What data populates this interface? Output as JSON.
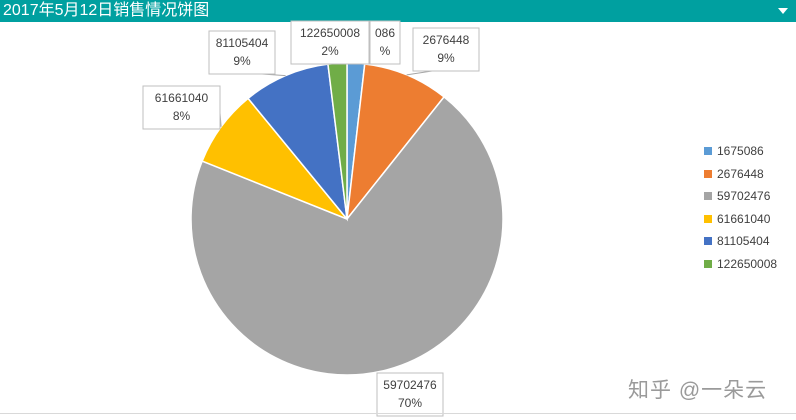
{
  "header": {
    "title": "2017年5月12日销售情况饼图"
  },
  "chart_data": {
    "type": "pie",
    "title": "2017年5月12日销售情况饼图",
    "start_angle_deg": 0,
    "direction": "clockwise",
    "slices": [
      {
        "label": "1675086",
        "value": 1675086,
        "percent_label": "2%",
        "color": "#5b9bd5"
      },
      {
        "label": "2676448",
        "value": 8200000,
        "percent_label": "9%",
        "color": "#ed7d31"
      },
      {
        "label": "59702476",
        "value": 65000000,
        "percent_label": "70%",
        "color": "#a5a5a5"
      },
      {
        "label": "61661040",
        "value": 7400000,
        "percent_label": "8%",
        "color": "#ffc000"
      },
      {
        "label": "81105404",
        "value": 8300000,
        "percent_label": "9%",
        "color": "#4472c4"
      },
      {
        "label": "122650008",
        "value": 1800000,
        "percent_label": "2%",
        "color": "#70ad47"
      }
    ],
    "data_labels_visible": [
      {
        "value_text": "086",
        "percent_text": "%"
      },
      {
        "value_text": "2676448",
        "percent_text": "9%"
      },
      {
        "value_text": "59702476",
        "percent_text": "70%"
      },
      {
        "value_text": "61661040",
        "percent_text": "8%"
      },
      {
        "value_text": "81105404",
        "percent_text": "9%"
      },
      {
        "value_text": "122650008",
        "percent_text": "2%"
      }
    ],
    "legend": {
      "position": "right",
      "entries": [
        "1675086",
        "2676448",
        "59702476",
        "61661040",
        "81105404",
        "122650008"
      ]
    }
  },
  "watermark": {
    "text": "知乎 @一朵云"
  }
}
